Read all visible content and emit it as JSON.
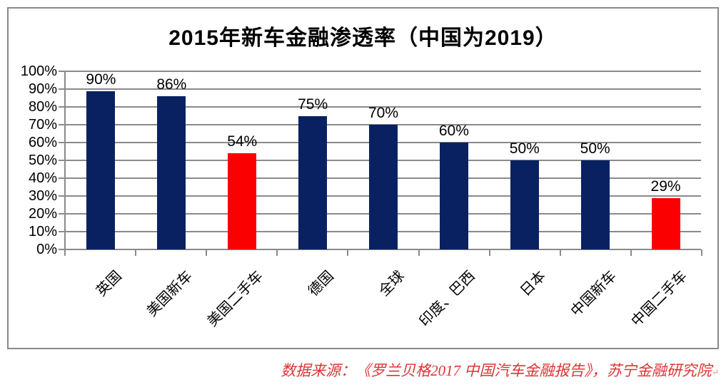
{
  "chart_data": {
    "type": "bar",
    "title": "2015年新车金融渗透率（中国为2019）",
    "categories": [
      "英国",
      "美国新车",
      "美国二手车",
      "德国",
      "全球",
      "印度、巴西",
      "日本",
      "中国新车",
      "中国二手车"
    ],
    "values": [
      90,
      86,
      54,
      75,
      70,
      60,
      50,
      50,
      29
    ],
    "bar_labels": [
      "90%",
      "86%",
      "54%",
      "75%",
      "70%",
      "60%",
      "50%",
      "50%",
      "29%"
    ],
    "bar_colors": [
      "#0a2161",
      "#0a2161",
      "#fb0000",
      "#0a2161",
      "#0a2161",
      "#0a2161",
      "#0a2161",
      "#0a2161",
      "#fb0000"
    ],
    "default_bar_color": "#0a2161",
    "highlight_bar_color": "#fb0000",
    "y_tick_labels": [
      "100%",
      "90%",
      "80%",
      "70%",
      "60%",
      "50%",
      "40%",
      "30%",
      "20%",
      "10%",
      "0%"
    ],
    "ylim": [
      0,
      100
    ],
    "grid": true,
    "gridline_color": "#8a8a8a",
    "legend_position": "none",
    "xlabel": "",
    "ylabel": ""
  },
  "footer": {
    "source_text": "数据来源：《罗兰贝格2017 中国汽车金融报告》，苏宁金融研究院",
    "return_mark": "↵",
    "text_color": "#dd3434"
  }
}
